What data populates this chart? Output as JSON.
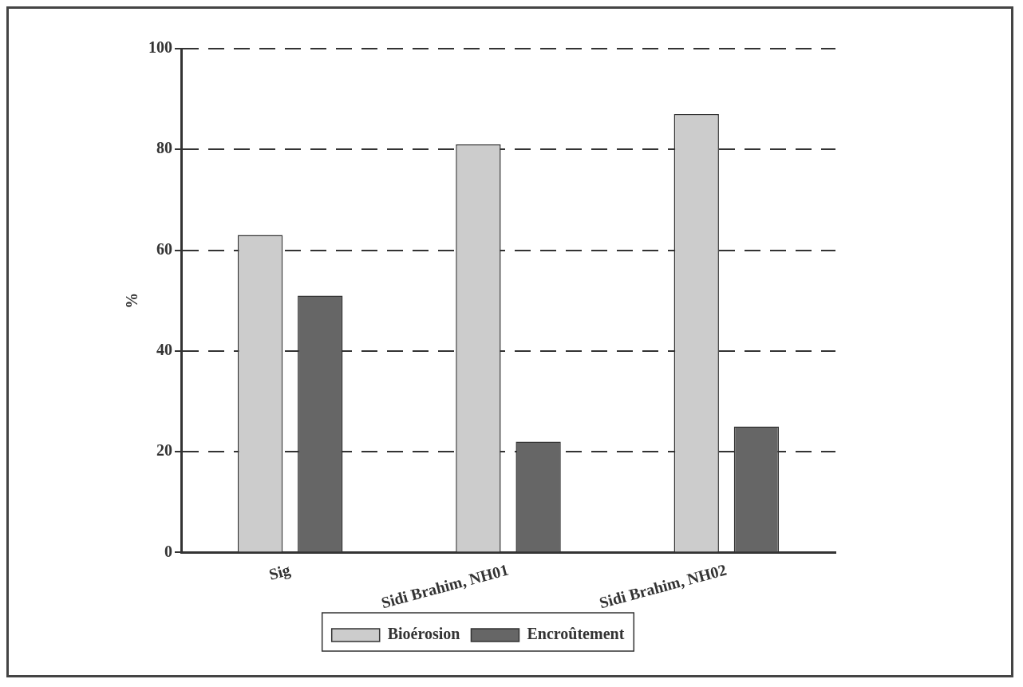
{
  "chart_data": {
    "type": "bar",
    "ylabel": "%",
    "categories": [
      "Sig",
      "Sidi Brahim, NH01",
      "Sidi Brahim, NH02"
    ],
    "series": [
      {
        "name": "Bioérosion",
        "color": "#cccccc",
        "values": [
          63,
          81,
          87
        ]
      },
      {
        "name": "Encroûtement",
        "color": "#666666",
        "values": [
          51,
          22,
          25
        ]
      }
    ],
    "ylim": [
      0,
      100
    ],
    "yticks": [
      0,
      20,
      40,
      60,
      80,
      100
    ],
    "grid": "y",
    "legend": "bottom"
  }
}
